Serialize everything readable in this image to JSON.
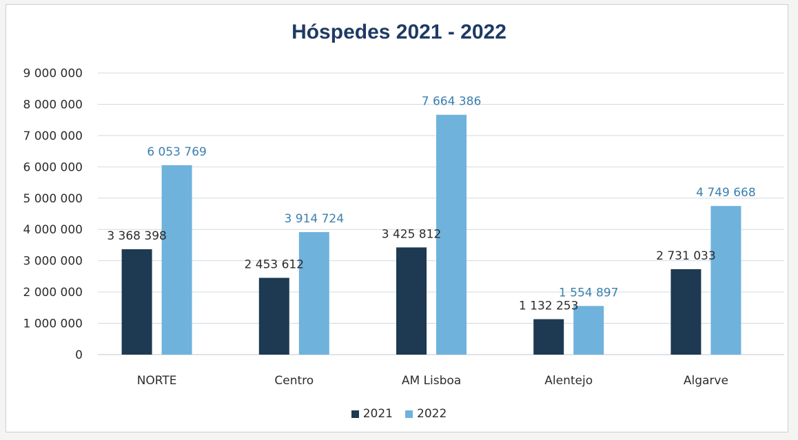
{
  "chart_data": {
    "type": "bar",
    "title": "Hóspedes 2021 - 2022",
    "categories": [
      "NORTE",
      "Centro",
      "AM Lisboa",
      "Alentejo",
      "Algarve"
    ],
    "series": [
      {
        "name": "2021",
        "color": "#1d3a52",
        "values": [
          3368398,
          2453612,
          3425812,
          1132253,
          2731033
        ],
        "labels": [
          "3 368 398",
          "2 453 612",
          "3 425 812",
          "1 132 253",
          "2 731 033"
        ]
      },
      {
        "name": "2022",
        "color": "#6fb2dc",
        "values": [
          6053769,
          3914724,
          7664386,
          1554897,
          4749668
        ],
        "labels": [
          "6 053 769",
          "3 914 724",
          "7 664 386",
          "1 554 897",
          "4 749 668"
        ]
      }
    ],
    "ylim": [
      0,
      9000000
    ],
    "ytick_labels": [
      "0",
      "1 000 000",
      "2 000 000",
      "3 000 000",
      "4 000 000",
      "5 000 000",
      "6 000 000",
      "7 000 000",
      "8 000 000",
      "9 000 000"
    ],
    "grid": true,
    "legend_position": "bottom",
    "data_label_colors": {
      "2021": "#2c2c2c",
      "2022": "#3a7fae"
    }
  }
}
